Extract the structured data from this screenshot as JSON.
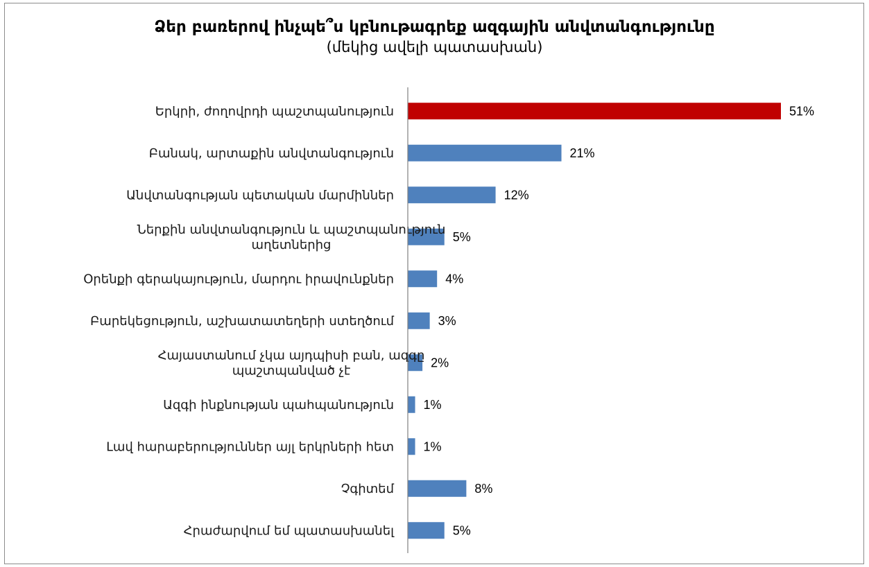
{
  "chart_data": {
    "type": "bar",
    "orientation": "horizontal",
    "title": "Ձեր բառերով ինչպե՞ս կբնութագրեք ազգային անվտանգությունը",
    "subtitle": "(մեկից ավելի պատասխան)",
    "categories": [
      [
        "Երկրի, ժողովրդի պաշտպանություն"
      ],
      [
        "Բանակ, արտաքին անվտանգություն"
      ],
      [
        "Անվտանգության պետական մարմիններ"
      ],
      [
        "Ներքին անվտանգություն և պաշտպանություն",
        "աղետներից"
      ],
      [
        "Օրենքի գերակայություն, մարդու իրավունքներ"
      ],
      [
        "Բարեկեցություն, աշխատատեղերի ստեղծում"
      ],
      [
        "Հայաստանում չկա այդպիսի բան, ազգը",
        "պաշտպանված չէ"
      ],
      [
        "Ազգի ինքնության պահպանություն"
      ],
      [
        "Լավ հարաբերություններ այլ երկրների հետ"
      ],
      [
        "Չգիտեմ"
      ],
      [
        "Հրաժարվում եմ պատասխանել"
      ]
    ],
    "values": [
      51,
      21,
      12,
      5,
      4,
      3,
      2,
      1,
      1,
      8,
      5
    ],
    "value_labels": [
      "51%",
      "21%",
      "12%",
      "5%",
      "4%",
      "3%",
      "2%",
      "1%",
      "1%",
      "8%",
      "5%"
    ],
    "unit": "%",
    "xlim": [
      0,
      51
    ],
    "grid": false,
    "legend": "none",
    "colors": {
      "highlight": "#c00000",
      "default": "#4f81bd",
      "axis": "#808080"
    },
    "highlight_index": 0
  }
}
